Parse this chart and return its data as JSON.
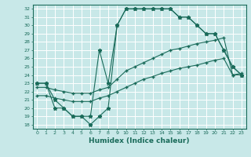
{
  "title": "",
  "xlabel": "Humidex (Indice chaleur)",
  "bg_color": "#c8e8e8",
  "grid_color": "#ffffff",
  "line_color": "#1a6b5a",
  "xlim": [
    -0.5,
    23.5
  ],
  "ylim": [
    17.5,
    32.5
  ],
  "xticks": [
    0,
    1,
    2,
    3,
    4,
    5,
    6,
    7,
    8,
    9,
    10,
    11,
    12,
    13,
    14,
    15,
    16,
    17,
    18,
    19,
    20,
    21,
    22,
    23
  ],
  "yticks": [
    18,
    19,
    20,
    21,
    22,
    23,
    24,
    25,
    26,
    27,
    28,
    29,
    30,
    31,
    32
  ],
  "line_main": [
    23,
    23,
    21,
    20,
    19,
    19,
    18,
    19,
    20,
    30,
    32,
    32,
    32,
    32,
    32,
    32,
    31,
    31,
    30,
    29,
    29,
    27,
    25,
    24
  ],
  "line_jagged": [
    23,
    23,
    20,
    20,
    19,
    19,
    19,
    27,
    23,
    30,
    32,
    32,
    32,
    32,
    32,
    32,
    31,
    31,
    30,
    29,
    29,
    27,
    25,
    24
  ],
  "line_trend_upper": [
    22.5,
    22.5,
    22.2,
    22.0,
    21.8,
    21.8,
    21.8,
    22.2,
    22.5,
    23.5,
    24.5,
    25.0,
    25.5,
    26.0,
    26.5,
    27.0,
    27.2,
    27.5,
    27.8,
    28.0,
    28.2,
    28.5,
    24.0,
    24.2
  ],
  "line_trend_lower": [
    21.5,
    21.5,
    21.2,
    21.0,
    20.8,
    20.8,
    20.8,
    21.2,
    21.5,
    22.0,
    22.5,
    23.0,
    23.5,
    23.8,
    24.2,
    24.5,
    24.8,
    25.0,
    25.2,
    25.5,
    25.8,
    26.0,
    24.0,
    24.0
  ]
}
